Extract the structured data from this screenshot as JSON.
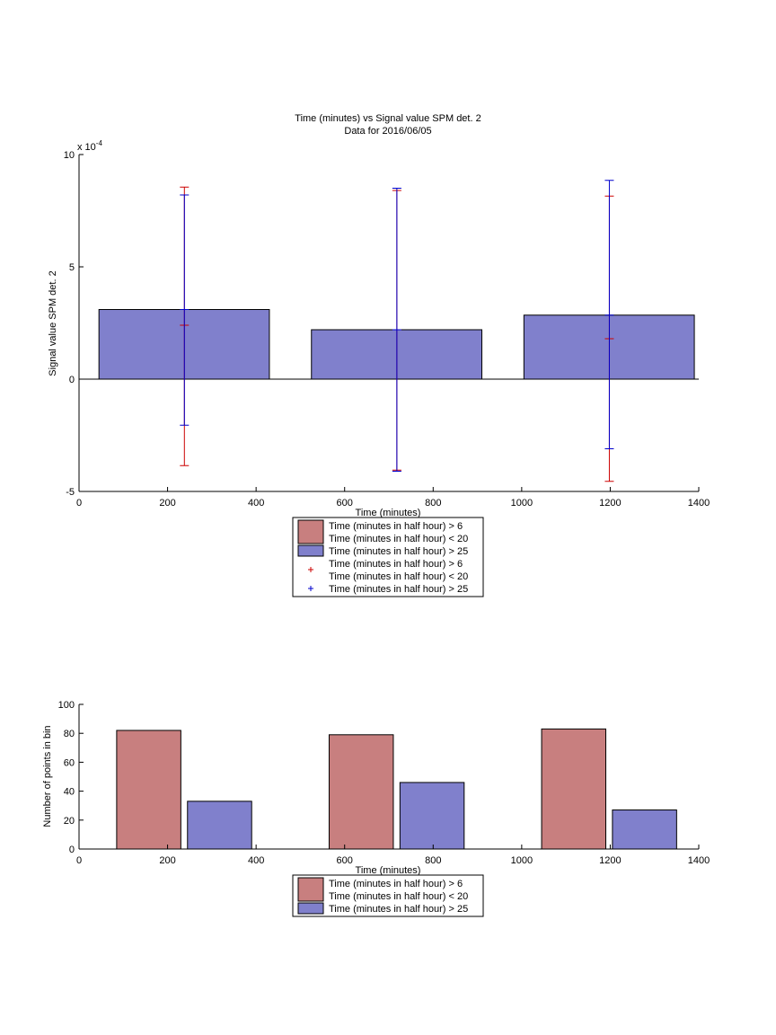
{
  "chart_data": [
    {
      "type": "bar",
      "title": "Time (minutes) vs Signal value SPM det. 2",
      "subtitle": "Data for 2016/06/05",
      "xlabel": "Time (minutes)",
      "ylabel": "Signal value SPM det. 2",
      "exponent_label": "x 10",
      "exponent_power": "-4",
      "xlim": [
        0,
        1400
      ],
      "ylim": [
        -5,
        10
      ],
      "xticks": [
        "0",
        "200",
        "400",
        "600",
        "800",
        "1000",
        "1200",
        "1400"
      ],
      "yticks": [
        "-5",
        "0",
        "5",
        "10"
      ],
      "bars": [
        {
          "x0": 45,
          "x1": 430,
          "value": 3.1
        },
        {
          "x0": 525,
          "x1": 910,
          "value": 2.2
        },
        {
          "x0": 1005,
          "x1": 1390,
          "value": 2.85
        }
      ],
      "series": [
        {
          "name": "Time (minutes in half hour) > 6 Time (minutes in half hour) < 20",
          "color": "#cc0000",
          "points": [
            {
              "x": 238,
              "mean": 2.4,
              "low": -3.85,
              "high": 8.55
            },
            {
              "x": 718,
              "mean": 2.2,
              "low": -4.05,
              "high": 8.4
            },
            {
              "x": 1198,
              "mean": 1.8,
              "low": -4.55,
              "high": 8.15
            }
          ]
        },
        {
          "name": "Time (minutes in half hour) > 25",
          "color": "#0000cc",
          "points": [
            {
              "x": 238,
              "mean": 3.1,
              "low": -2.05,
              "high": 8.2
            },
            {
              "x": 718,
              "mean": 2.2,
              "low": -4.1,
              "high": 8.5
            },
            {
              "x": 1198,
              "mean": 2.85,
              "low": -3.1,
              "high": 8.85
            }
          ]
        }
      ],
      "legend": [
        {
          "kind": "patch",
          "color": "#c87f7f",
          "line1": "Time (minutes in half hour) > 6",
          "line2": "Time (minutes in half hour) < 20"
        },
        {
          "kind": "patch",
          "color": "#8080cc",
          "line1": "Time (minutes in half hour) > 25"
        },
        {
          "kind": "marker",
          "color": "#cc0000",
          "line1": "Time (minutes in half hour) > 6",
          "line2": "Time (minutes in half hour) < 20"
        },
        {
          "kind": "marker",
          "color": "#0000cc",
          "line1": "Time (minutes in half hour) > 25"
        }
      ],
      "legend_placement": "below"
    },
    {
      "type": "bar",
      "xlabel": "Time (minutes)",
      "ylabel": "Number of points in bin",
      "xlim": [
        0,
        1400
      ],
      "ylim": [
        0,
        100
      ],
      "xticks": [
        "0",
        "200",
        "400",
        "600",
        "800",
        "1000",
        "1200",
        "1400"
      ],
      "yticks": [
        "0",
        "20",
        "40",
        "60",
        "80",
        "100"
      ],
      "bars": [
        {
          "x0": 85,
          "x1": 230,
          "value": 82,
          "color": "#c87f7f"
        },
        {
          "x0": 245,
          "x1": 390,
          "value": 33,
          "color": "#8080cc"
        },
        {
          "x0": 565,
          "x1": 710,
          "value": 79,
          "color": "#c87f7f"
        },
        {
          "x0": 725,
          "x1": 870,
          "value": 46,
          "color": "#8080cc"
        },
        {
          "x0": 1045,
          "x1": 1190,
          "value": 83,
          "color": "#c87f7f"
        },
        {
          "x0": 1205,
          "x1": 1350,
          "value": 27,
          "color": "#8080cc"
        }
      ],
      "legend": [
        {
          "kind": "patch",
          "color": "#c87f7f",
          "line1": "Time (minutes in half hour) > 6",
          "line2": "Time (minutes in half hour) < 20"
        },
        {
          "kind": "patch",
          "color": "#8080cc",
          "line1": "Time (minutes in half hour) > 25"
        }
      ],
      "legend_placement": "below"
    }
  ]
}
